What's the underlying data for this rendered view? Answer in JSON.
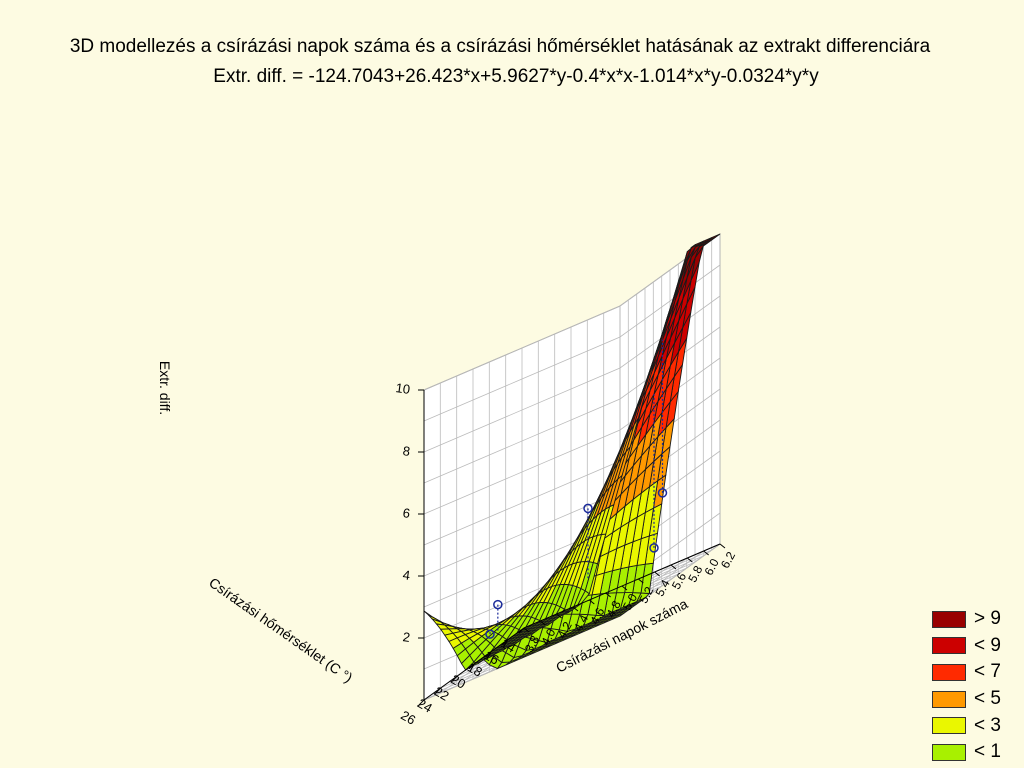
{
  "chart_data": {
    "type": "surface3d",
    "title": "3D modellezés a  csírázási napok száma és a csírázási hőmérséklet hatásának az extrakt differenciára",
    "subtitle": "Extr. diff. = -124.7043+26.423*x+5.9627*y-0.4*x*x-1.014*x*y-0.0324*y*y",
    "zlabel": "Extr. diff.",
    "xlabel": "Csírázási napok száma",
    "ylabel": "Csírázási hőmérséklet (C  °)",
    "x_ticks": [
      "3.8",
      "4.0",
      "4.2",
      "4.4",
      "4.6",
      "4.8",
      "5.0",
      "5.2",
      "5.4",
      "5.6",
      "5.8",
      "6.0",
      "6.2"
    ],
    "y_ticks": [
      "14",
      "16",
      "18",
      "20",
      "22",
      "24",
      "26"
    ],
    "z_ticks": [
      "2",
      "4",
      "6",
      "8",
      "10"
    ],
    "coefficients": {
      "const": -124.7043,
      "x": 26.423,
      "y": 5.9627,
      "xx": -0.4,
      "xy": -1.014,
      "yy": -0.0324
    },
    "xlim": [
      3.8,
      6.2
    ],
    "ylim": [
      14,
      26
    ],
    "zlim": [
      0,
      10
    ],
    "observed_points": [
      {
        "x": 5.7,
        "y": 16,
        "z": 2.6
      },
      {
        "x": 4.5,
        "y": 24,
        "z": 1.9
      },
      {
        "x": 4.2,
        "y": 22,
        "z": 0.9
      },
      {
        "x": 5.8,
        "y": 18,
        "z": 1.1
      },
      {
        "x": 5.4,
        "y": 22,
        "z": 3.6
      }
    ],
    "legend_position": "bottom-right",
    "legend": [
      {
        "label": "> 9",
        "color": "#990000"
      },
      {
        "label": "< 9",
        "color": "#cc0000"
      },
      {
        "label": "< 7",
        "color": "#ff2a00"
      },
      {
        "label": "< 5",
        "color": "#ff9900"
      },
      {
        "label": "< 3",
        "color": "#eaf700"
      },
      {
        "label": "< 1",
        "color": "#a8f000"
      }
    ],
    "grid": true
  }
}
